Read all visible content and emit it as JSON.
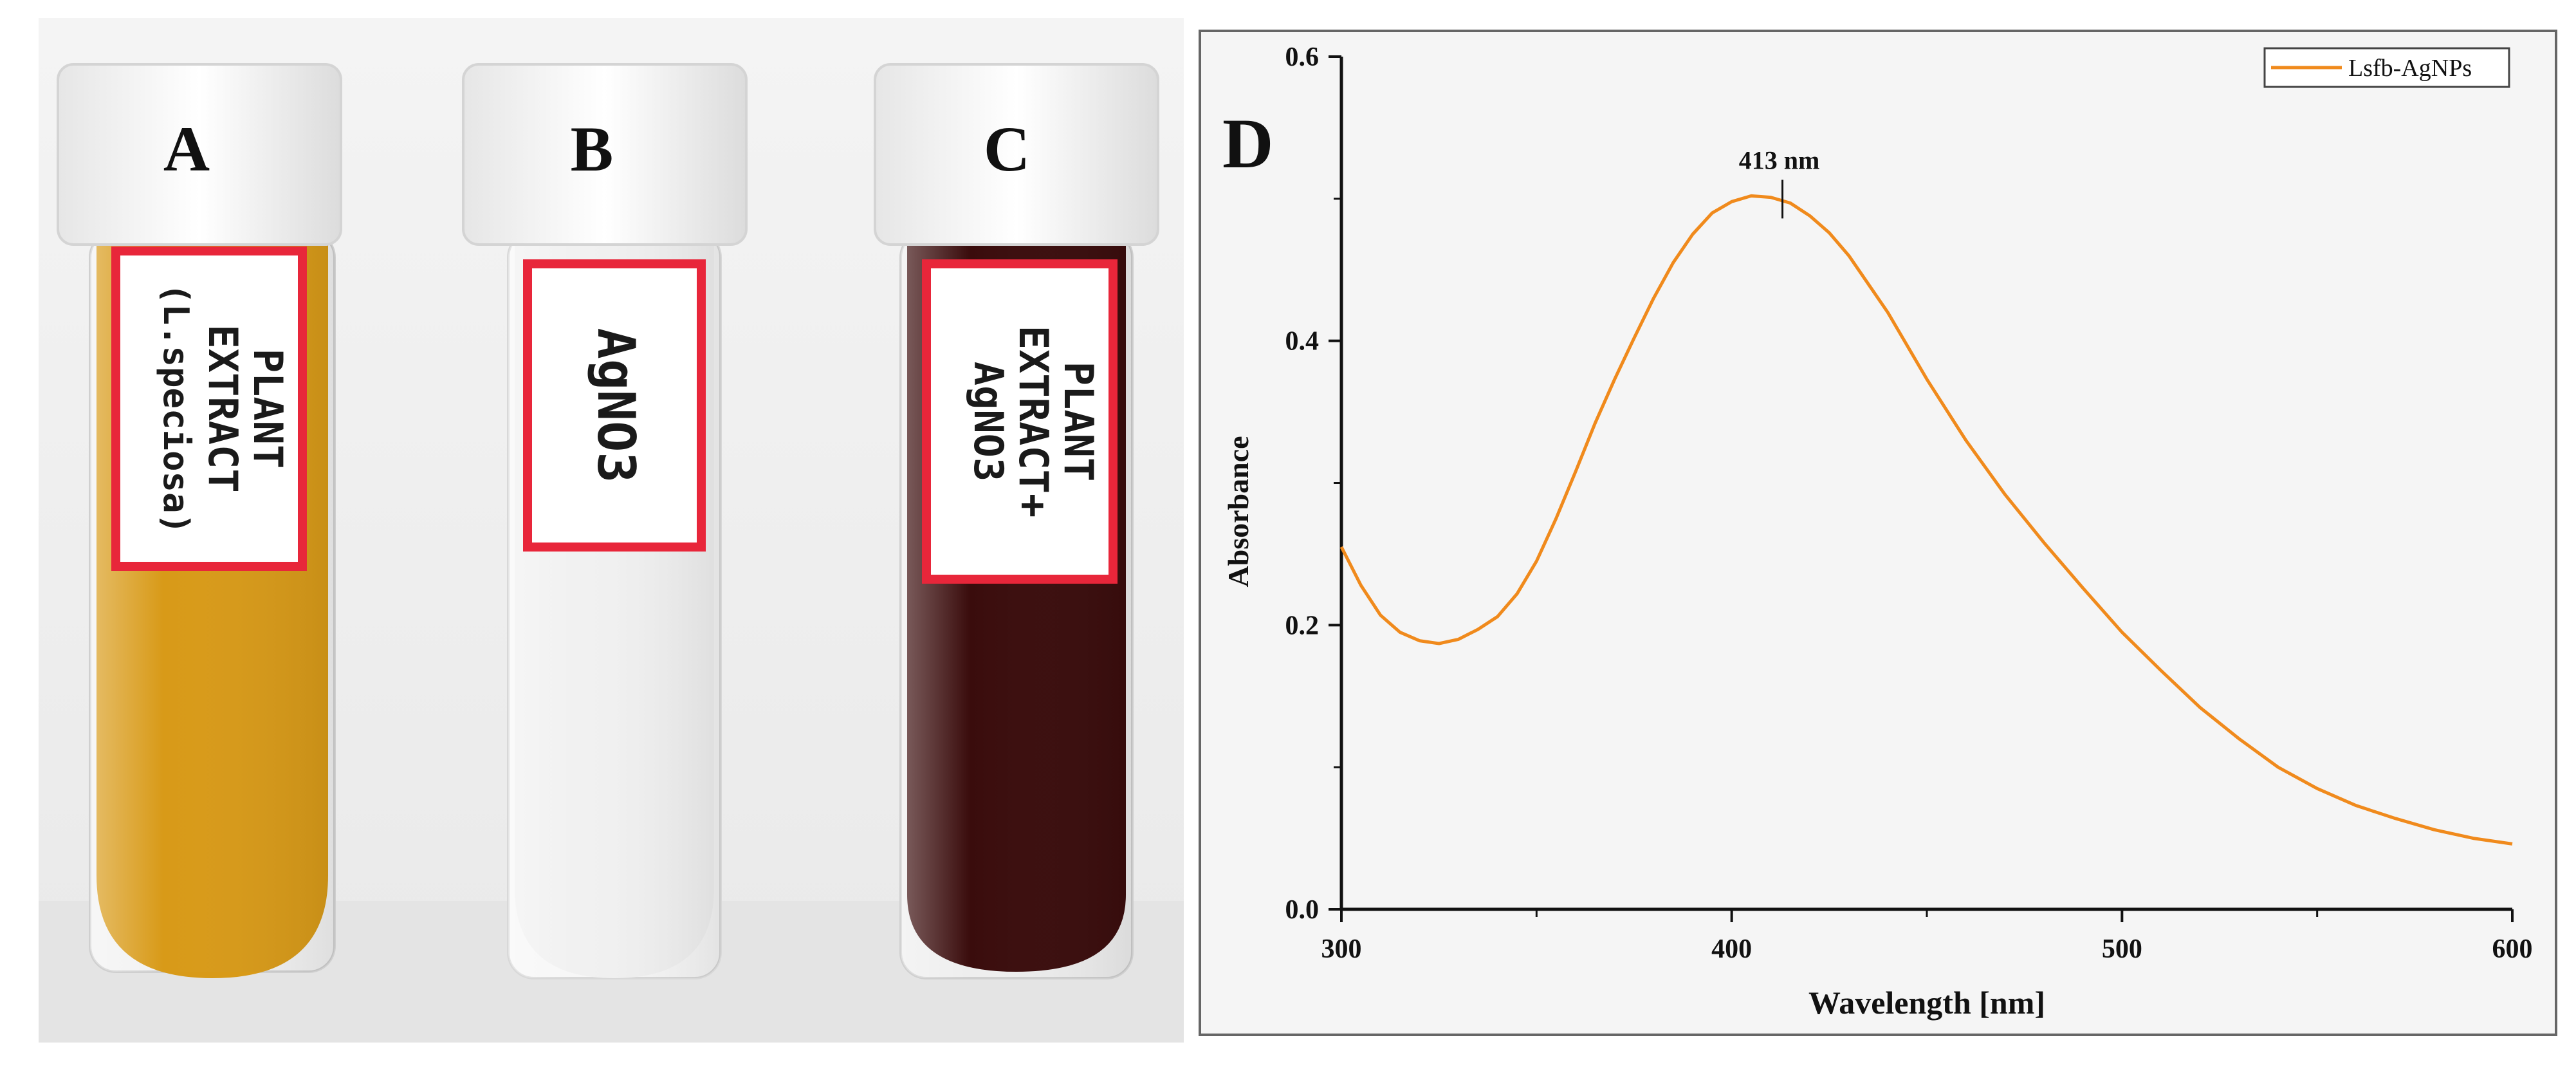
{
  "photo": {
    "tubes": [
      {
        "letter": "A",
        "label_lines": [
          "PLANT",
          "EXTRACT",
          "(L.speciosa)"
        ],
        "liquid_color": "#d89a18",
        "label_color": "#e8263a"
      },
      {
        "letter": "B",
        "label_lines": [
          "AgNO3"
        ],
        "liquid_color": "#f1f1f1",
        "label_color": "#e8263a"
      },
      {
        "letter": "C",
        "label_lines": [
          "PLANT",
          "EXTRACT+",
          "AgNO3"
        ],
        "liquid_color": "#3a0c0c",
        "label_color": "#e8263a"
      }
    ]
  },
  "chart_data": {
    "type": "line",
    "panel_letter": "D",
    "xlabel": "Wavelength [nm]",
    "ylabel": "Absorbance",
    "xlim": [
      300,
      600
    ],
    "ylim": [
      0,
      0.6
    ],
    "x_ticks": [
      300,
      400,
      500,
      600
    ],
    "y_ticks": [
      "0.0",
      "0.2",
      "0.4",
      "0.6"
    ],
    "legend_position": "top-right",
    "series": [
      {
        "name": "Lsfb-AgNPs",
        "color": "#f08a1c",
        "x": [
          300,
          305,
          310,
          315,
          320,
          325,
          330,
          335,
          340,
          345,
          350,
          355,
          360,
          365,
          370,
          375,
          380,
          385,
          390,
          395,
          400,
          405,
          410,
          415,
          420,
          425,
          430,
          440,
          450,
          460,
          470,
          480,
          490,
          500,
          510,
          520,
          530,
          540,
          550,
          560,
          570,
          580,
          590,
          600
        ],
        "y": [
          0.255,
          0.228,
          0.207,
          0.195,
          0.189,
          0.187,
          0.19,
          0.197,
          0.206,
          0.222,
          0.245,
          0.275,
          0.308,
          0.342,
          0.373,
          0.402,
          0.43,
          0.455,
          0.475,
          0.49,
          0.498,
          0.502,
          0.501,
          0.497,
          0.488,
          0.476,
          0.46,
          0.42,
          0.373,
          0.33,
          0.292,
          0.258,
          0.226,
          0.195,
          0.168,
          0.142,
          0.12,
          0.1,
          0.085,
          0.073,
          0.064,
          0.056,
          0.05,
          0.046
        ]
      }
    ],
    "annotations": [
      {
        "text": "413 nm",
        "x": 413,
        "y": 0.502
      }
    ]
  }
}
